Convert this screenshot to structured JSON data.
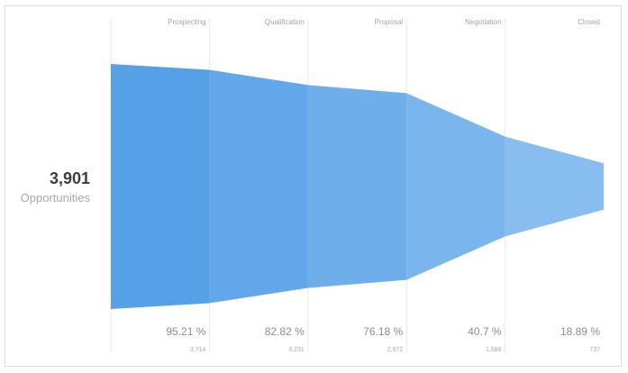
{
  "summary": {
    "total": "3,901",
    "caption": "Opportunities"
  },
  "chart_data": {
    "type": "funnel",
    "total": 3901,
    "stages": [
      {
        "name": "Prospecting",
        "value": 3714,
        "value_label": "3,714",
        "percent_label": "95.21 %"
      },
      {
        "name": "Qualification",
        "value": 3231,
        "value_label": "3,231",
        "percent_label": "82.82 %"
      },
      {
        "name": "Proposal",
        "value": 2972,
        "value_label": "2,972",
        "percent_label": "76.18 %"
      },
      {
        "name": "Negotiation",
        "value": 1588,
        "value_label": "1,588",
        "percent_label": "40.7 %"
      },
      {
        "name": "Closed",
        "value": 737,
        "value_label": "737",
        "percent_label": "18.89 %"
      }
    ],
    "colors": [
      "#56a0e8",
      "#62a7ea",
      "#6eaeeb",
      "#7ab5ed",
      "#88bdf0"
    ]
  }
}
